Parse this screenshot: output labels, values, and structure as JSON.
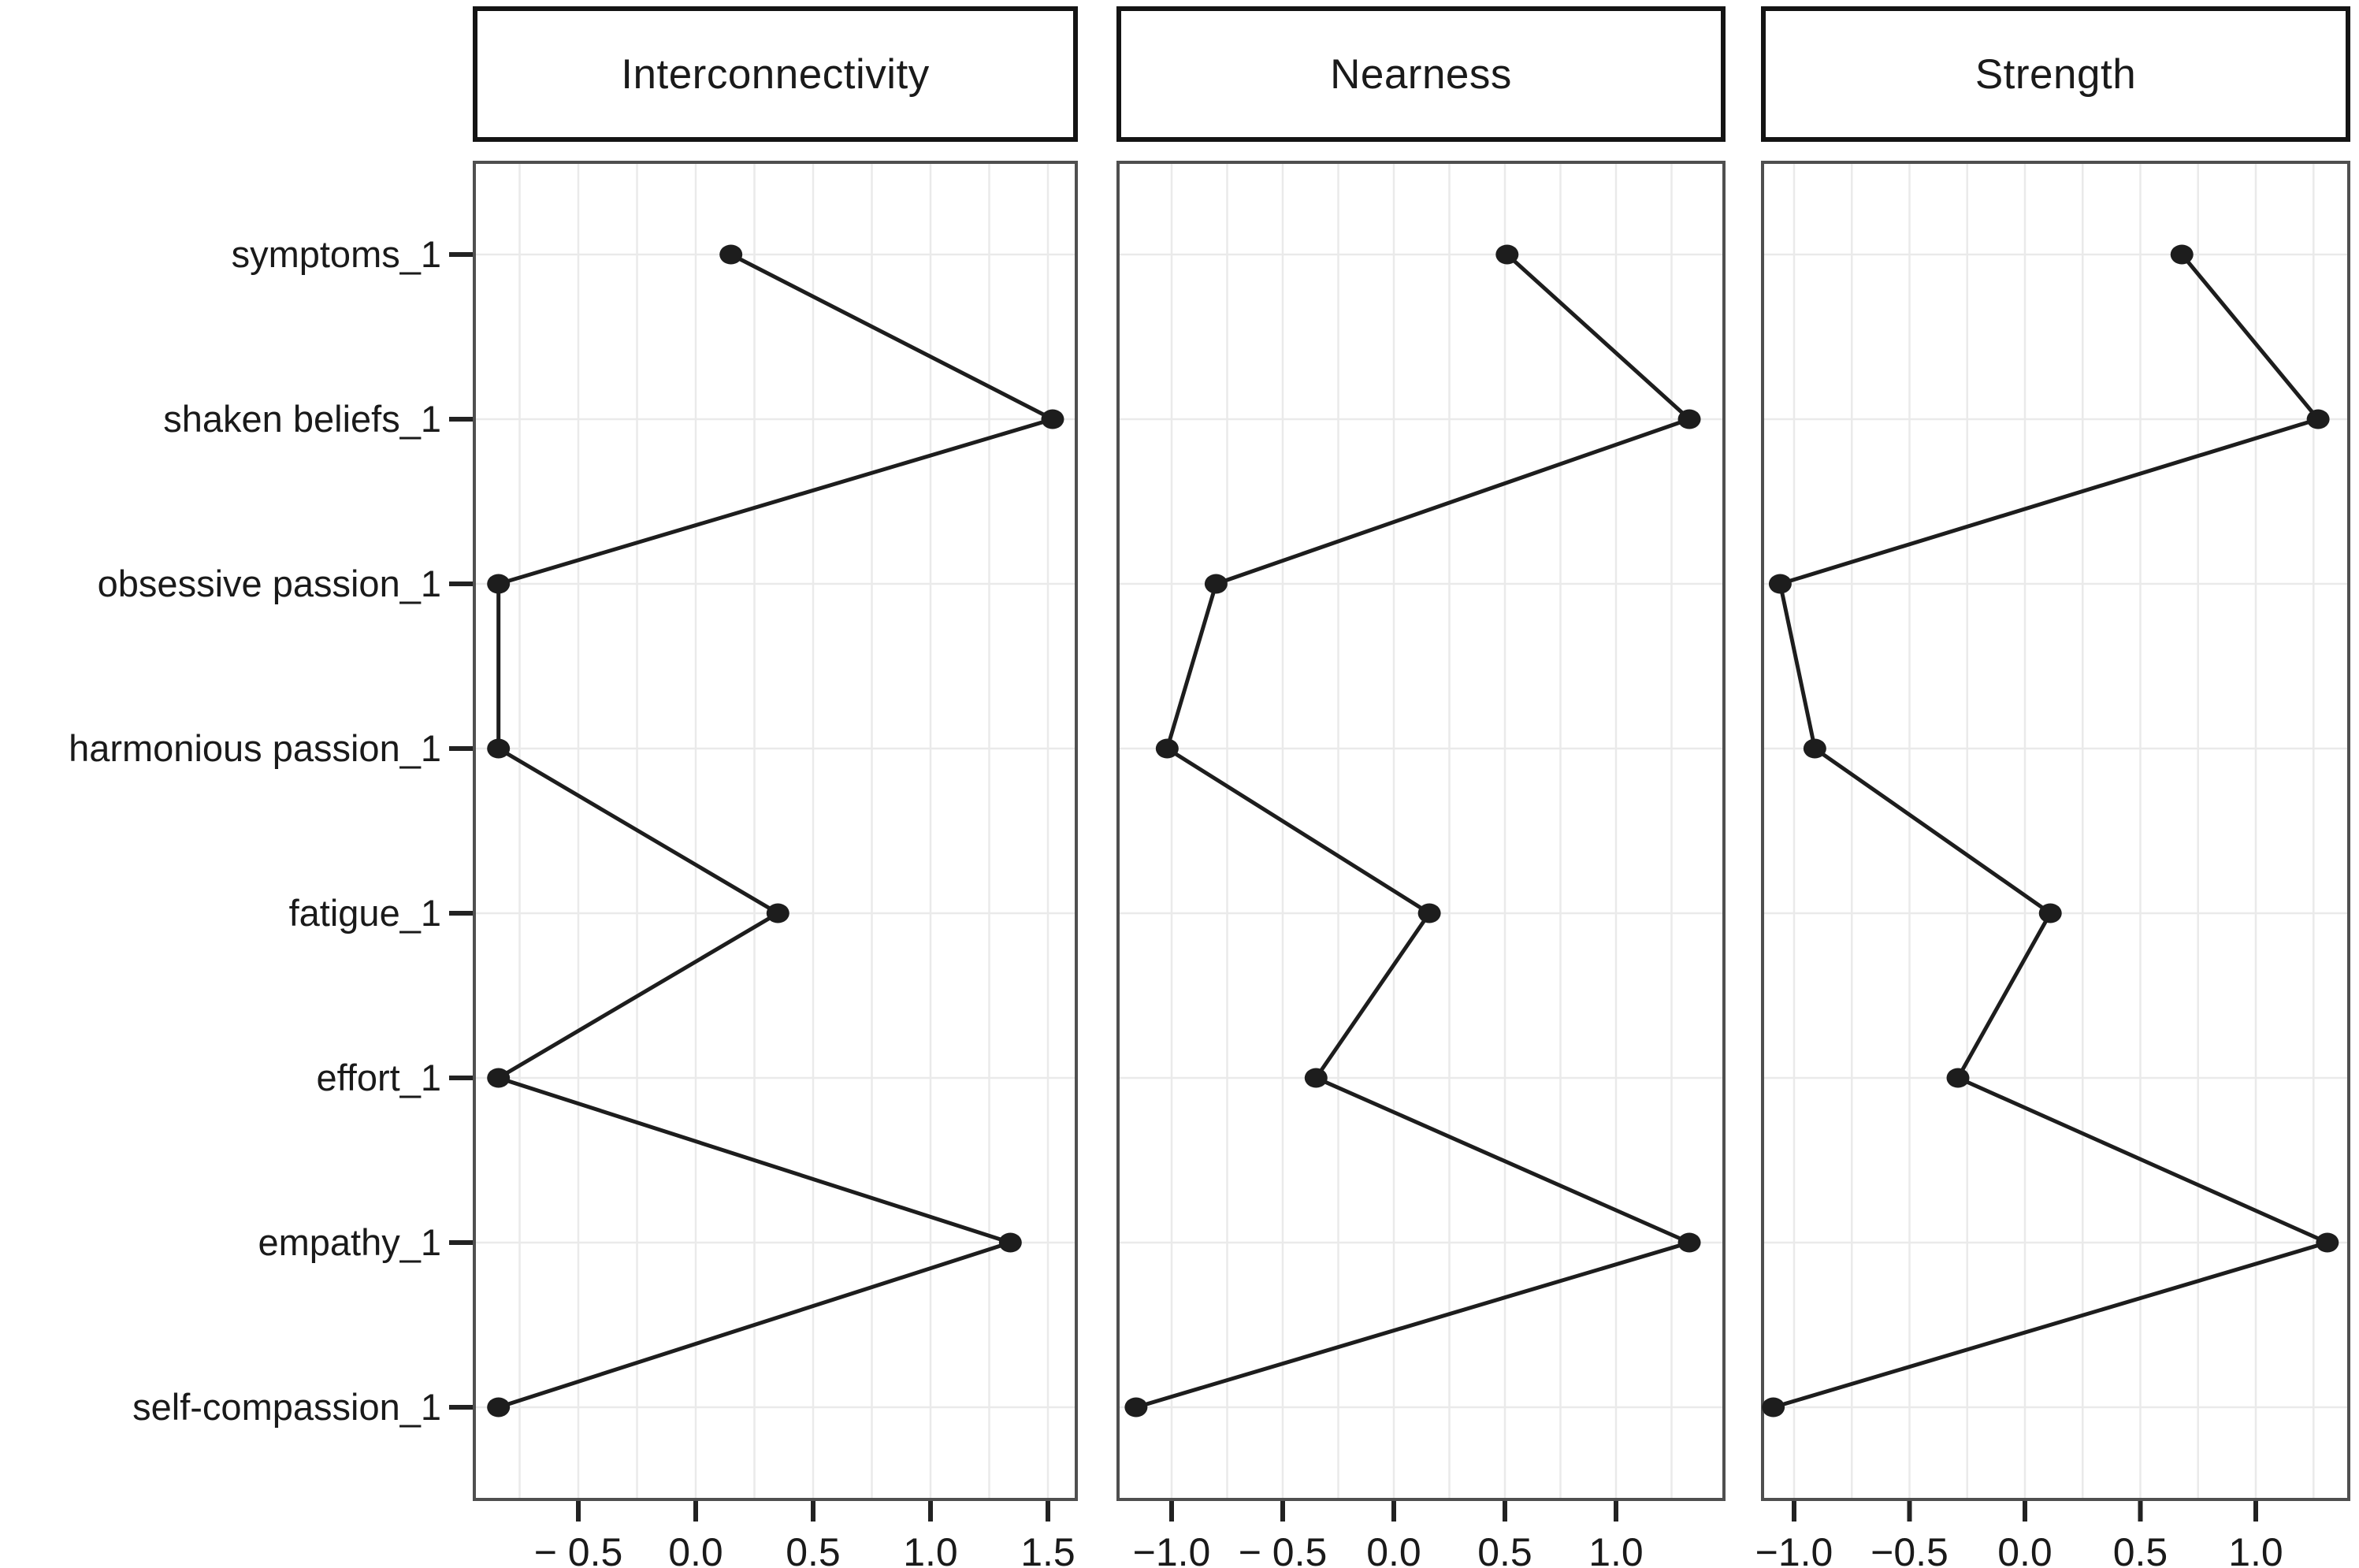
{
  "figure": {
    "kind": "faceted centrality plot",
    "background": "#ffffff"
  },
  "chart_data": {
    "type": "line",
    "variant": "horizontal dot-line plot, 3 facets sharing category axis",
    "title": "",
    "xlabel": "",
    "ylabel": "",
    "legend_position": "none",
    "grid": {
      "show": true,
      "minor_step": 0.25
    },
    "categories": [
      "symptoms_1",
      "shaken beliefs_1",
      "obsessive passion_1",
      "harmonious passion_1",
      "fatigue_1",
      "effort_1",
      "empathy_1",
      "self-compassion_1"
    ],
    "panels": [
      {
        "title": "Interconnectivity",
        "xlim": [
          -0.95,
          1.63
        ],
        "ticks": [
          -0.5,
          0.0,
          0.5,
          1.0,
          1.5
        ],
        "tick_labels": [
          "− 0.5",
          "0.0",
          "0.5",
          "1.0",
          "1.5"
        ],
        "values": [
          0.15,
          1.52,
          -0.84,
          -0.84,
          0.35,
          -0.84,
          1.34,
          -0.84
        ]
      },
      {
        "title": "Nearness",
        "xlim": [
          -1.25,
          1.49
        ],
        "ticks": [
          -1.0,
          -0.5,
          0.0,
          0.5,
          1.0
        ],
        "tick_labels": [
          "−1.0",
          "− 0.5",
          "0.0",
          "0.5",
          "1.0"
        ],
        "values": [
          0.51,
          1.33,
          -0.8,
          -1.02,
          0.16,
          -0.35,
          1.33,
          -1.16
        ]
      },
      {
        "title": "Strength",
        "xlim": [
          -1.13,
          1.41
        ],
        "ticks": [
          -1.0,
          -0.5,
          0.0,
          0.5,
          1.0
        ],
        "tick_labels": [
          "−1.0",
          "−0.5",
          "0.0",
          "0.5",
          "1.0"
        ],
        "values": [
          0.68,
          1.27,
          -1.06,
          -0.91,
          0.11,
          -0.29,
          1.31,
          -1.09
        ]
      }
    ],
    "styles": {
      "point_color": "#1d1d1d",
      "line_color": "#1d1d1d",
      "grid_color": "#eaeaea",
      "panel_border_color": "#4f4f4f",
      "header_border_color": "#141414",
      "tick_color": "#222222",
      "text_color": "#1a1a1a",
      "background": "#ffffff"
    }
  }
}
